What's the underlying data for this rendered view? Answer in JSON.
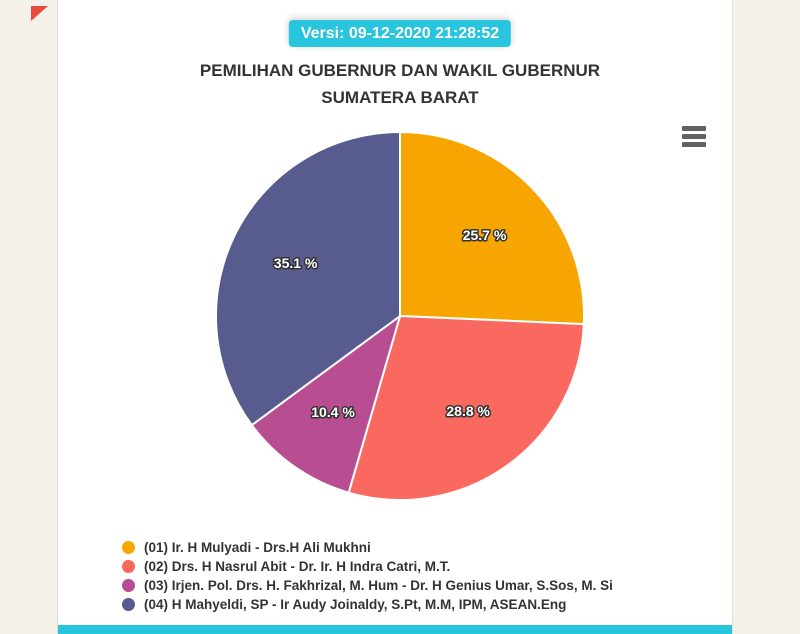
{
  "page": {
    "version_badge": "Versi: 09-12-2020 21:28:52",
    "title_line1": "PEMILIHAN GUBERNUR DAN WAKIL GUBERNUR",
    "title_line2": "SUMATERA BARAT"
  },
  "colors": {
    "page_bg": "#f4f1e9",
    "card_bg": "#ffffff",
    "badge_bg": "#29c4dd",
    "footer_bar_bg": "#29c4dd",
    "corner_triangle": "#e74c3c",
    "title_text": "#333333",
    "legend_text": "#333333",
    "menu_icon": "#616161",
    "slice_border": "#ffffff"
  },
  "icons": {
    "export_menu": "hamburger-icon"
  },
  "chart_data": {
    "type": "pie",
    "title": "PEMILIHAN GUBERNUR DAN WAKIL GUBERNUR SUMATERA BARAT",
    "unit": "%",
    "legend_position": "bottom-left",
    "start_angle_deg": 0,
    "direction": "clockwise",
    "series": [
      {
        "name": "(01) Ir. H Mulyadi - Drs.H Ali Mukhni",
        "value": 25.7,
        "label": "25.7 %",
        "color": "#f7a500"
      },
      {
        "name": "(02) Drs. H Nasrul Abit - Dr. Ir. H Indra Catri, M.T.",
        "value": 28.8,
        "label": "28.8 %",
        "color": "#f9695f"
      },
      {
        "name": "(03) Irjen. Pol. Drs. H. Fakhrizal, M. Hum - Dr. H Genius Umar, S.Sos, M. Si",
        "value": 10.4,
        "label": "10.4 %",
        "color": "#b84d92"
      },
      {
        "name": "(04) H Mahyeldi, SP - Ir Audy Joinaldy, S.Pt, M.M, IPM, ASEAN.Eng",
        "value": 35.1,
        "label": "35.1 %",
        "color": "#585b8e"
      }
    ]
  }
}
